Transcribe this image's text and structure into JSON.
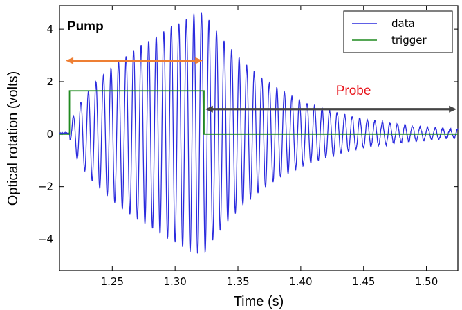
{
  "chart_data": {
    "type": "line",
    "xlabel": "Time (s)",
    "ylabel": "Optical rotation (volts)",
    "xlim": [
      1.208,
      1.525
    ],
    "ylim": [
      -5.2,
      4.9
    ],
    "x_ticks": [
      1.25,
      1.3,
      1.35,
      1.4,
      1.45,
      1.5
    ],
    "x_tick_labels": [
      "1.25",
      "1.30",
      "1.35",
      "1.40",
      "1.45",
      "1.50"
    ],
    "y_ticks": [
      -4,
      -2,
      0,
      2,
      4
    ],
    "y_tick_labels": [
      "−4",
      "−2",
      "0",
      "2",
      "4"
    ],
    "grid": false,
    "legend_position": "top-right",
    "series": [
      {
        "name": "data",
        "color": "#2b2bde",
        "envelope_description_values": {
          "oscillation_frequency_hz": 166.7,
          "baseline_before": 0.02,
          "pump_start": 1.216,
          "pump_end": 1.323,
          "peak_positive": 4.6,
          "peak_negative": -4.55,
          "decay_time_s": 0.06
        }
      },
      {
        "name": "trigger",
        "color": "#1f8a1f",
        "x": [
          1.208,
          1.216,
          1.216,
          1.323,
          1.323,
          1.525
        ],
        "y": [
          0.0,
          0.0,
          1.65,
          1.65,
          0.0,
          0.0
        ]
      }
    ],
    "annotations": [
      {
        "text": "Pump",
        "color": "#000000",
        "arrow_color": "#ee7f34",
        "x_from": 1.216,
        "x_to": 1.323,
        "y": 2.8
      },
      {
        "text": "Probe",
        "color": "#e8141b",
        "arrow_color": "#444444",
        "x_from": 1.324,
        "x_to": 1.524,
        "y": 0.95
      }
    ]
  }
}
